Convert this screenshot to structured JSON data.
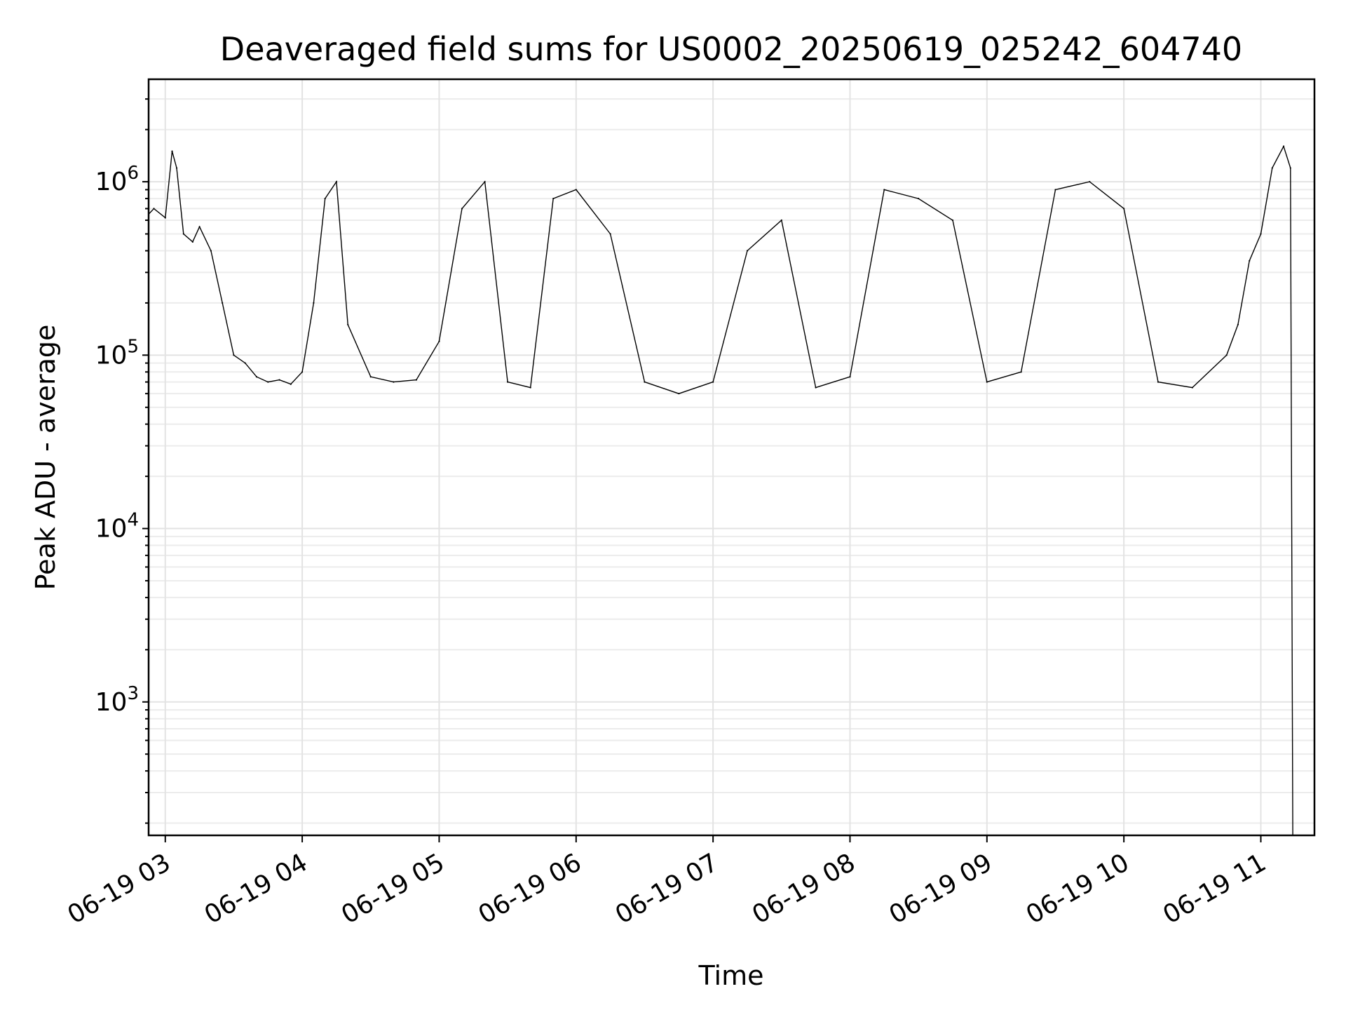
{
  "chart_data": {
    "type": "line",
    "title": "Deaveraged field sums for US0002_20250619_025242_604740",
    "xlabel": "Time",
    "ylabel": "Peak ADU - average",
    "y_scale": "log",
    "ylim": [
      170,
      3900000
    ],
    "xlim": [
      "2025-06-19 02:52:42",
      "2025-06-19 11:23:30"
    ],
    "grid": true,
    "line_color": "#000000",
    "x_tick_labels": [
      "06-19 03",
      "06-19 04",
      "06-19 05",
      "06-19 06",
      "06-19 07",
      "06-19 08",
      "06-19 09",
      "06-19 10",
      "06-19 11"
    ],
    "x_ticks": [
      "2025-06-19 03:00",
      "2025-06-19 04:00",
      "2025-06-19 05:00",
      "2025-06-19 06:00",
      "2025-06-19 07:00",
      "2025-06-19 08:00",
      "2025-06-19 09:00",
      "2025-06-19 10:00",
      "2025-06-19 11:00"
    ],
    "y_ticks": [
      {
        "value": 1000,
        "base": "10",
        "exp": "3"
      },
      {
        "value": 10000,
        "base": "10",
        "exp": "4"
      },
      {
        "value": 100000,
        "base": "10",
        "exp": "5"
      },
      {
        "value": 1000000,
        "base": "10",
        "exp": "6"
      }
    ],
    "series": [
      {
        "x": [
          "2025-06-19 02:52:42",
          "2025-06-19 02:55",
          "2025-06-19 03:00",
          "2025-06-19 03:03",
          "2025-06-19 03:05",
          "2025-06-19 03:08",
          "2025-06-19 03:12",
          "2025-06-19 03:15",
          "2025-06-19 03:20",
          "2025-06-19 03:25",
          "2025-06-19 03:30",
          "2025-06-19 03:35",
          "2025-06-19 03:40",
          "2025-06-19 03:45",
          "2025-06-19 03:50",
          "2025-06-19 03:55",
          "2025-06-19 04:00",
          "2025-06-19 04:05",
          "2025-06-19 04:10",
          "2025-06-19 04:15",
          "2025-06-19 04:20",
          "2025-06-19 04:30",
          "2025-06-19 04:40",
          "2025-06-19 04:50",
          "2025-06-19 05:00",
          "2025-06-19 05:10",
          "2025-06-19 05:20",
          "2025-06-19 05:30",
          "2025-06-19 05:40",
          "2025-06-19 05:50",
          "2025-06-19 06:00",
          "2025-06-19 06:15",
          "2025-06-19 06:30",
          "2025-06-19 06:45",
          "2025-06-19 07:00",
          "2025-06-19 07:15",
          "2025-06-19 07:30",
          "2025-06-19 07:45",
          "2025-06-19 08:00",
          "2025-06-19 08:15",
          "2025-06-19 08:30",
          "2025-06-19 08:45",
          "2025-06-19 09:00",
          "2025-06-19 09:15",
          "2025-06-19 09:30",
          "2025-06-19 09:45",
          "2025-06-19 10:00",
          "2025-06-19 10:15",
          "2025-06-19 10:30",
          "2025-06-19 10:45",
          "2025-06-19 10:50",
          "2025-06-19 10:55",
          "2025-06-19 11:00",
          "2025-06-19 11:05",
          "2025-06-19 11:10",
          "2025-06-19 11:13",
          "2025-06-19 11:14"
        ],
        "y": [
          650000,
          700000,
          620000,
          1500000,
          1200000,
          500000,
          450000,
          550000,
          400000,
          200000,
          100000,
          90000,
          75000,
          70000,
          72000,
          68000,
          80000,
          200000,
          800000,
          1000000,
          150000,
          75000,
          70000,
          72000,
          120000,
          700000,
          1000000,
          70000,
          65000,
          800000,
          900000,
          500000,
          70000,
          60000,
          70000,
          400000,
          600000,
          65000,
          75000,
          900000,
          800000,
          600000,
          70000,
          80000,
          900000,
          1000000,
          700000,
          70000,
          65000,
          100000,
          150000,
          350000,
          500000,
          1200000,
          1600000,
          1200000,
          170
        ]
      }
    ]
  }
}
